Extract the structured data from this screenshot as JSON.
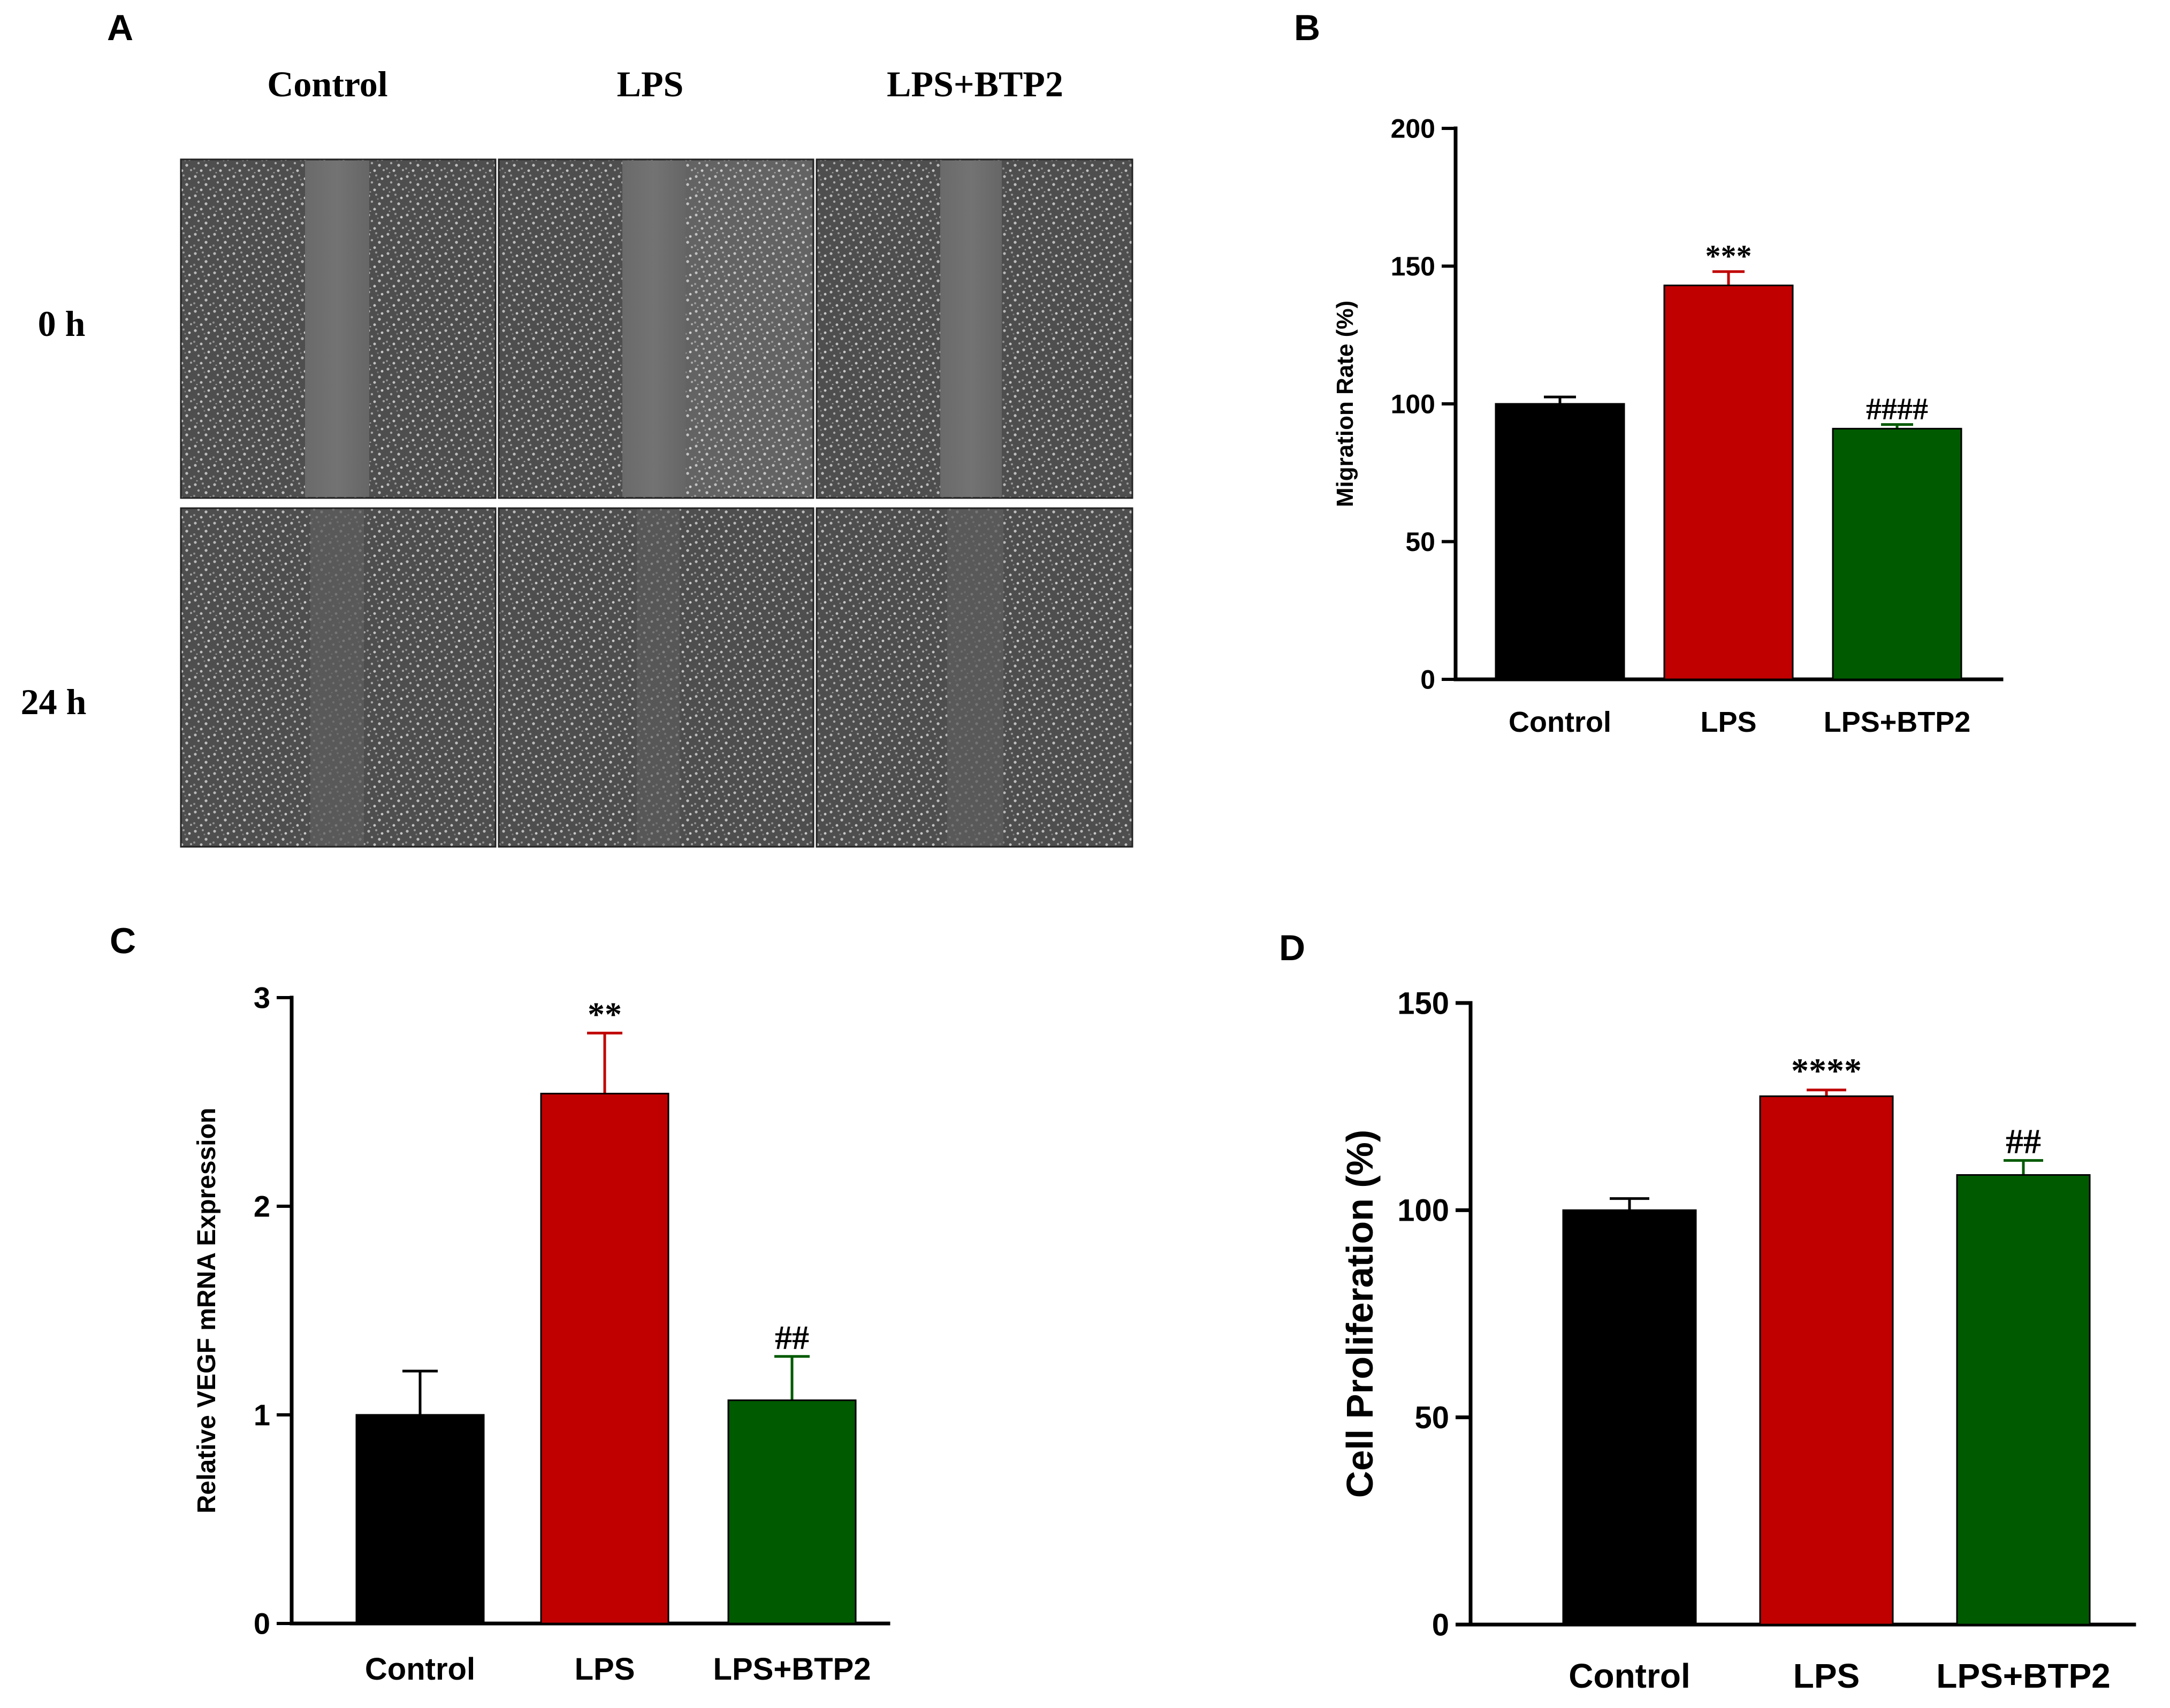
{
  "figure": {
    "panel_a": {
      "letter": "A",
      "column_labels": [
        "Control",
        "LPS",
        "LPS+BTP2"
      ],
      "row_labels": [
        "0 h",
        "24 h"
      ]
    }
  },
  "colors": {
    "control": "#000000",
    "lps": "#c00000",
    "lps_btp2": "#005a00"
  },
  "chart_data": [
    {
      "panel": "B",
      "type": "bar",
      "title": "",
      "categories": [
        "Control",
        "LPS",
        "LPS+BTP2"
      ],
      "values": [
        100,
        143,
        91
      ],
      "errors": [
        2.5,
        5,
        1.5
      ],
      "significance": [
        "",
        "***",
        "####"
      ],
      "xlabel": "",
      "ylabel": "Migration Rate (%)",
      "ylim": [
        0,
        200
      ],
      "yticks": [
        0,
        50,
        100,
        150,
        200
      ],
      "grid": false,
      "legend": "none"
    },
    {
      "panel": "C",
      "type": "bar",
      "title": "",
      "categories": [
        "Control",
        "LPS",
        "LPS+BTP2"
      ],
      "values": [
        1.0,
        2.54,
        1.07
      ],
      "errors": [
        0.21,
        0.29,
        0.21
      ],
      "significance": [
        "",
        "**",
        "##"
      ],
      "xlabel": "",
      "ylabel": "Relative VEGF mRNA Expression",
      "ylim": [
        0,
        3
      ],
      "yticks": [
        0,
        1,
        2,
        3
      ],
      "grid": false,
      "legend": "none"
    },
    {
      "panel": "D",
      "type": "bar",
      "title": "",
      "categories": [
        "Control",
        "LPS",
        "LPS+BTP2"
      ],
      "values": [
        100,
        127.5,
        108.5
      ],
      "errors": [
        2.8,
        1.5,
        3.5
      ],
      "significance": [
        "",
        "****",
        "##"
      ],
      "xlabel": "",
      "ylabel": "Cell Proliferation (%)",
      "ylim": [
        0,
        150
      ],
      "yticks": [
        0,
        50,
        100,
        150
      ],
      "grid": false,
      "legend": "none"
    }
  ]
}
